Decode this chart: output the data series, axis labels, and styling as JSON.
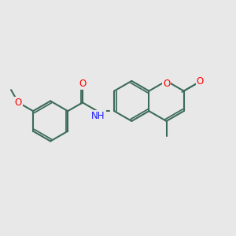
{
  "bg": "#e8e8e8",
  "bc": "#3d6b5a",
  "bw": 1.5,
  "dbo": 0.055,
  "O_color": "#ff0000",
  "N_color": "#1a1aff",
  "fs": 8.5,
  "figsize": [
    3.0,
    3.0
  ],
  "dpi": 100,
  "xlim": [
    -2.6,
    3.4
  ],
  "ylim": [
    -1.6,
    1.6
  ]
}
